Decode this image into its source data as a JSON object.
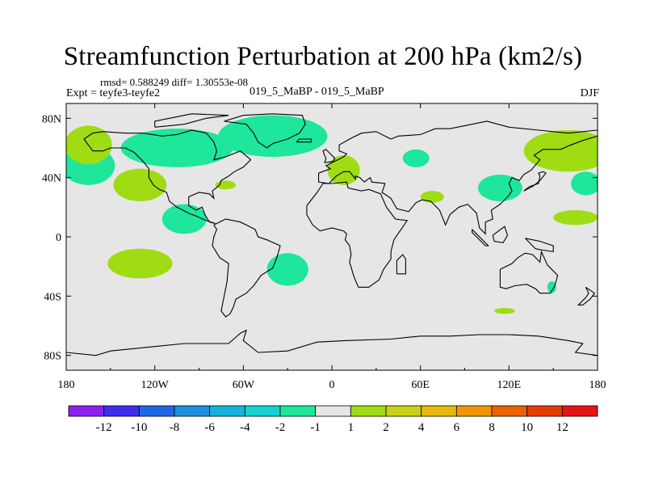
{
  "chart_data": {
    "type": "contour-map",
    "title": "Streamfunction Perturbation at 200 hPa (km2/s)",
    "stats_line": "rmsd= 0.588249 diff= 1.30553e-08",
    "experiment_label": "Expt = teyfe3-teyfe2",
    "case_label": "019_5_MaBP - 019_5_MaBP",
    "season": "DJF",
    "x_ticks": [
      "180",
      "120W",
      "60W",
      "0",
      "60E",
      "120E",
      "180"
    ],
    "x_tick_values": [
      -180,
      -120,
      -60,
      0,
      60,
      120,
      180
    ],
    "y_ticks": [
      "80N",
      "40N",
      "0",
      "40S",
      "80S"
    ],
    "y_tick_values": [
      80,
      40,
      0,
      -40,
      -80
    ],
    "xlim": [
      -180,
      180
    ],
    "ylim": [
      -90,
      90
    ],
    "colorbar_labels": [
      "-12",
      "-10",
      "-8",
      "-6",
      "-4",
      "-2",
      "-1",
      "1",
      "2",
      "4",
      "6",
      "8",
      "10",
      "12"
    ],
    "colorbar_colors": [
      "#8f1ef0",
      "#3d2df0",
      "#1e68e6",
      "#1e8fdc",
      "#14b4dc",
      "#14d2d2",
      "#1ee69b",
      "#e6e6e6",
      "#a0dc14",
      "#c8d214",
      "#e6b90a",
      "#f09600",
      "#eb6400",
      "#e63c00",
      "#e61414"
    ],
    "regions": [
      {
        "level": "-2 to -1",
        "color": "#1ee69b",
        "lon": -165,
        "lat": 48,
        "rx": 18,
        "ry": 13
      },
      {
        "level": "-2 to -1",
        "color": "#1ee69b",
        "lon": -100,
        "lat": 12,
        "rx": 15,
        "ry": 10
      },
      {
        "level": "-2 to -1",
        "color": "#1ee69b",
        "lon": -105,
        "lat": 60,
        "rx": 38,
        "ry": 13
      },
      {
        "level": "-2 to -1",
        "color": "#1ee69b",
        "lon": -40,
        "lat": 68,
        "rx": 37,
        "ry": 14
      },
      {
        "level": "-2 to -1",
        "color": "#1ee69b",
        "lon": -30,
        "lat": -22,
        "rx": 14,
        "ry": 11
      },
      {
        "level": "-2 to -1",
        "color": "#1ee69b",
        "lon": 57,
        "lat": 53,
        "rx": 9,
        "ry": 6
      },
      {
        "level": "-2 to -1",
        "color": "#1ee69b",
        "lon": 114,
        "lat": 33,
        "rx": 15,
        "ry": 9
      },
      {
        "level": "-2 to -1",
        "color": "#1ee69b",
        "lon": 172,
        "lat": 36,
        "rx": 10,
        "ry": 8
      },
      {
        "level": "-2 to -1",
        "color": "#1ee69b",
        "lon": 149,
        "lat": -34,
        "rx": 3,
        "ry": 4
      },
      {
        "level": "1 to 2",
        "color": "#a0dc14",
        "lon": -165,
        "lat": 62,
        "rx": 16,
        "ry": 13
      },
      {
        "level": "1 to 2",
        "color": "#a0dc14",
        "lon": -130,
        "lat": 35,
        "rx": 18,
        "ry": 11
      },
      {
        "level": "1 to 2",
        "color": "#a0dc14",
        "lon": -130,
        "lat": -18,
        "rx": 22,
        "ry": 10
      },
      {
        "level": "1 to 2",
        "color": "#a0dc14",
        "lon": -72,
        "lat": 35,
        "rx": 7,
        "ry": 3
      },
      {
        "level": "1 to 2",
        "color": "#a0dc14",
        "lon": 8,
        "lat": 45,
        "rx": 11,
        "ry": 10
      },
      {
        "level": "1 to 2",
        "color": "#a0dc14",
        "lon": 68,
        "lat": 27,
        "rx": 8,
        "ry": 4
      },
      {
        "level": "1 to 2",
        "color": "#a0dc14",
        "lon": 160,
        "lat": 58,
        "rx": 30,
        "ry": 14
      },
      {
        "level": "1 to 2",
        "color": "#a0dc14",
        "lon": 165,
        "lat": 13,
        "rx": 15,
        "ry": 5
      },
      {
        "level": "1 to 2",
        "color": "#a0dc14",
        "lon": 117,
        "lat": -50,
        "rx": 7,
        "ry": 2
      }
    ]
  }
}
